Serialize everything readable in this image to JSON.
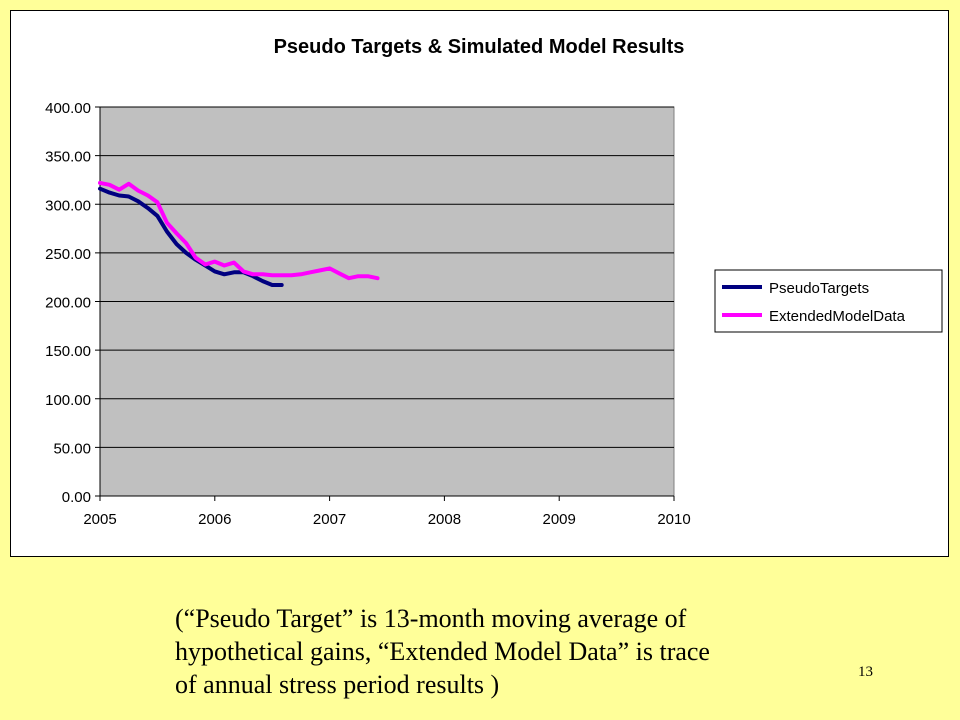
{
  "slide": {
    "caption_lines": [
      "(“Pseudo Target” is 13-month moving average of",
      "hypothetical gains, “Extended Model Data” is trace",
      "of annual stress period results )"
    ],
    "page_number": "13",
    "background_color": "#ffff99"
  },
  "chart_data": {
    "type": "line",
    "title": "Pseudo Targets & Simulated Model Results",
    "xlabel": "",
    "ylabel": "",
    "xlim": [
      2005,
      2010
    ],
    "ylim": [
      0,
      400
    ],
    "x_ticks": [
      "2005",
      "2006",
      "2007",
      "2008",
      "2009",
      "2010"
    ],
    "y_ticks": [
      "0.00",
      "50.00",
      "100.00",
      "150.00",
      "200.00",
      "250.00",
      "300.00",
      "350.00",
      "400.00"
    ],
    "grid": true,
    "plot_background": "#c0c0c0",
    "legend_position": "right",
    "series": [
      {
        "name": "PseudoTargets",
        "color": "#000080",
        "points": [
          [
            2005.0,
            316
          ],
          [
            2005.083,
            312
          ],
          [
            2005.167,
            309
          ],
          [
            2005.25,
            308
          ],
          [
            2005.333,
            303
          ],
          [
            2005.417,
            296
          ],
          [
            2005.5,
            288
          ],
          [
            2005.583,
            272
          ],
          [
            2005.667,
            259
          ],
          [
            2005.75,
            250
          ],
          [
            2005.833,
            243
          ],
          [
            2005.917,
            237
          ],
          [
            2006.0,
            231
          ],
          [
            2006.083,
            228
          ],
          [
            2006.167,
            230
          ],
          [
            2006.25,
            230
          ],
          [
            2006.333,
            226
          ],
          [
            2006.417,
            221
          ],
          [
            2006.5,
            217
          ],
          [
            2006.583,
            217
          ]
        ]
      },
      {
        "name": "ExtendedModelData",
        "color": "#ff00ff",
        "points": [
          [
            2005.0,
            322
          ],
          [
            2005.083,
            320
          ],
          [
            2005.167,
            315
          ],
          [
            2005.25,
            321
          ],
          [
            2005.333,
            314
          ],
          [
            2005.417,
            309
          ],
          [
            2005.5,
            302
          ],
          [
            2005.583,
            281
          ],
          [
            2005.667,
            270
          ],
          [
            2005.75,
            260
          ],
          [
            2005.833,
            245
          ],
          [
            2005.917,
            238
          ],
          [
            2006.0,
            241
          ],
          [
            2006.083,
            237
          ],
          [
            2006.167,
            240
          ],
          [
            2006.25,
            231
          ],
          [
            2006.333,
            228
          ],
          [
            2006.417,
            228
          ],
          [
            2006.5,
            227
          ],
          [
            2006.583,
            227
          ],
          [
            2006.667,
            227
          ],
          [
            2006.75,
            228
          ],
          [
            2006.833,
            230
          ],
          [
            2006.917,
            232
          ],
          [
            2007.0,
            234
          ],
          [
            2007.083,
            229
          ],
          [
            2007.167,
            224
          ],
          [
            2007.25,
            226
          ],
          [
            2007.333,
            226
          ],
          [
            2007.417,
            224
          ]
        ]
      }
    ]
  }
}
